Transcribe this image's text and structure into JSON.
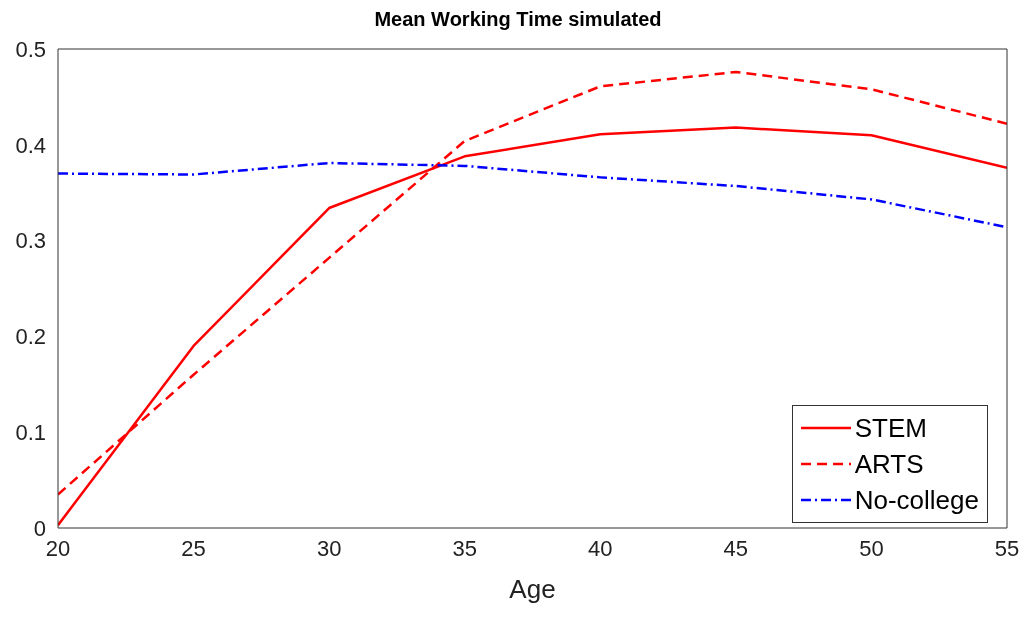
{
  "chart_data": {
    "type": "line",
    "title": "Mean Working Time simulated",
    "xlabel": "Age",
    "x": [
      20,
      25,
      30,
      35,
      40,
      45,
      50,
      55
    ],
    "series": [
      {
        "name": "STEM",
        "color": "#ff0000",
        "line_style": "solid",
        "values": [
          0.003,
          0.19,
          0.334,
          0.388,
          0.411,
          0.418,
          0.41,
          0.376
        ]
      },
      {
        "name": "ARTS",
        "color": "#ff0000",
        "line_style": "dashed",
        "values": [
          0.035,
          0.16,
          0.282,
          0.404,
          0.461,
          0.476,
          0.458,
          0.422
        ]
      },
      {
        "name": "No-college",
        "color": "#0000ff",
        "line_style": "dashdot",
        "values": [
          0.37,
          0.369,
          0.381,
          0.378,
          0.366,
          0.357,
          0.343,
          0.314
        ]
      }
    ],
    "xlim": [
      20,
      55
    ],
    "xticks": [
      20,
      25,
      30,
      35,
      40,
      45,
      50,
      55
    ],
    "ylim": [
      0,
      0.5
    ],
    "yticks": [
      0,
      0.1,
      0.2,
      0.3,
      0.4,
      0.5
    ],
    "grid": false,
    "legend": "bottom right",
    "marker": "none"
  }
}
